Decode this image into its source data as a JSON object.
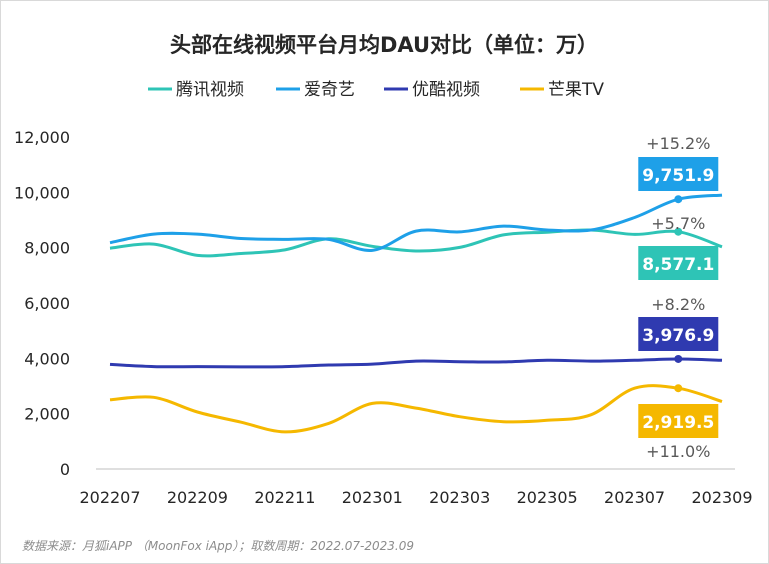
{
  "chart_data": {
    "type": "line",
    "title": "头部在线视频平台月均DAU对比（单位：万）",
    "xlabel": "",
    "ylabel": "",
    "ylim": [
      0,
      12000
    ],
    "yticks": [
      "0",
      "2,000",
      "4,000",
      "6,000",
      "8,000",
      "10,000",
      "12,000"
    ],
    "ytick_values": [
      0,
      2000,
      4000,
      6000,
      8000,
      10000,
      12000
    ],
    "categories": [
      "202207",
      "202208",
      "202209",
      "202210",
      "202211",
      "202212",
      "202301",
      "202302",
      "202303",
      "202304",
      "202305",
      "202306",
      "202307",
      "202308",
      "202309"
    ],
    "xtick_labels": [
      "202207",
      "202209",
      "202211",
      "202301",
      "202303",
      "202305",
      "202307",
      "202309"
    ],
    "legend_position": "top",
    "series": [
      {
        "name": "腾讯视频",
        "color": "#2ec4b6",
        "values": [
          7980,
          8130,
          7720,
          7790,
          7920,
          8320,
          8050,
          7880,
          8010,
          8460,
          8560,
          8640,
          8480,
          8577.1,
          8030
        ],
        "highlight_value": "8,577.1",
        "growth": "+5.7%"
      },
      {
        "name": "爱奇艺",
        "color": "#1ea0e8",
        "values": [
          8180,
          8490,
          8490,
          8330,
          8300,
          8300,
          7900,
          8600,
          8570,
          8780,
          8640,
          8640,
          9090,
          9751.9,
          9900
        ],
        "highlight_value": "9,751.9",
        "growth": "+15.2%"
      },
      {
        "name": "优酷视频",
        "color": "#2f3ab0",
        "values": [
          3780,
          3700,
          3700,
          3690,
          3700,
          3760,
          3790,
          3900,
          3880,
          3870,
          3930,
          3900,
          3930,
          3976.9,
          3930
        ],
        "highlight_value": "3,976.9",
        "growth": "+8.2%"
      },
      {
        "name": "芒果TV",
        "color": "#f5b800",
        "values": [
          2500,
          2590,
          2060,
          1690,
          1340,
          1650,
          2370,
          2200,
          1890,
          1710,
          1760,
          1960,
          2920,
          2919.5,
          2440
        ],
        "highlight_value": "2,919.5",
        "growth": "+11.0%"
      }
    ]
  },
  "source_text": "数据来源：月狐iAPP （MoonFox iApp）；取数周期：2022.07-2023.09"
}
